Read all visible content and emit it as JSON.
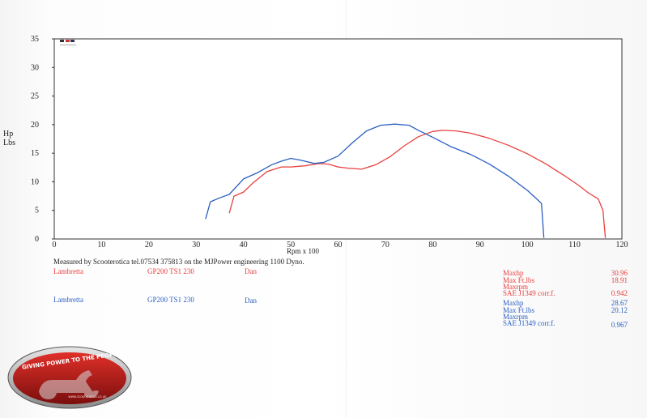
{
  "y_unit": [
    "Hp",
    "Lbs"
  ],
  "measured_text": "Measured by Scooterotica tel.07534 375813 on the MJPower engineering 1100 Dyno.",
  "runs": [
    {
      "color": "#e8403e",
      "make": "Lambretta",
      "model": "GP200 TS1 230",
      "rider": "Dan",
      "stats": [
        {
          "label": "Maxhp",
          "value": "30.96"
        },
        {
          "label": "Max Ft.lbs",
          "value": "18.91"
        },
        {
          "label": "Maxrpm",
          "value": ""
        },
        {
          "label": "SAE J1349 corr.f.",
          "value": "0.942"
        }
      ]
    },
    {
      "color": "#2a5fc2",
      "make": "Lambretta",
      "model": "GP200 TS1 230",
      "rider": "Dan",
      "stats": [
        {
          "label": "Maxhp",
          "value": "28.67"
        },
        {
          "label": "Max Ft.lbs",
          "value": "20.12"
        },
        {
          "label": "Maxrpm",
          "value": ""
        },
        {
          "label": "SAE J1349 corr.f.",
          "value": "0.967"
        }
      ]
    }
  ],
  "logo": {
    "text": "GIVING POWER TO THE PEOPLE!",
    "small_text": "www.scooterotica.co.uk",
    "colors": [
      "#c0201c",
      "#5a5a5a"
    ]
  },
  "chart_data": {
    "type": "line",
    "xlabel": "Rpm x 100",
    "ylabel": "",
    "xlim": [
      0,
      120
    ],
    "ylim": [
      0,
      35
    ],
    "xticks": [
      0,
      10,
      20,
      30,
      40,
      50,
      60,
      70,
      80,
      90,
      100,
      110,
      120
    ],
    "yticks": [
      0,
      5,
      10,
      15,
      20,
      25,
      30,
      35
    ],
    "grid": false,
    "series": [
      {
        "color": "#e8403e",
        "x": [
          37,
          38,
          40,
          42,
          45,
          48,
          50,
          53,
          56,
          58,
          60,
          62,
          65,
          68,
          71,
          74,
          77,
          80,
          82,
          85,
          88,
          92,
          96,
          100,
          104,
          108,
          111,
          113,
          115,
          116,
          116.5
        ],
        "y": [
          4.5,
          7.5,
          8.2,
          9.8,
          11.8,
          12.6,
          12.6,
          12.8,
          13.2,
          13.1,
          12.6,
          12.4,
          12.2,
          13.0,
          14.4,
          16.3,
          17.9,
          18.8,
          19.0,
          18.9,
          18.5,
          17.6,
          16.4,
          14.9,
          13.1,
          11.0,
          9.3,
          8.0,
          7.0,
          5.0,
          0.2
        ]
      },
      {
        "color": "#2a5fc2",
        "x": [
          32,
          33,
          35,
          37,
          40,
          43,
          46,
          48,
          50,
          52,
          55,
          57,
          60,
          63,
          66,
          69,
          72,
          75,
          77,
          80,
          84,
          88,
          92,
          96,
          100,
          102,
          103,
          103.5
        ],
        "y": [
          3.5,
          6.5,
          7.2,
          7.8,
          10.5,
          11.6,
          13.0,
          13.6,
          14.1,
          13.8,
          13.2,
          13.4,
          14.5,
          16.8,
          18.9,
          19.9,
          20.1,
          19.9,
          19.0,
          17.8,
          16.1,
          14.8,
          13.1,
          11.0,
          8.5,
          7.0,
          6.2,
          0.2
        ]
      }
    ]
  }
}
